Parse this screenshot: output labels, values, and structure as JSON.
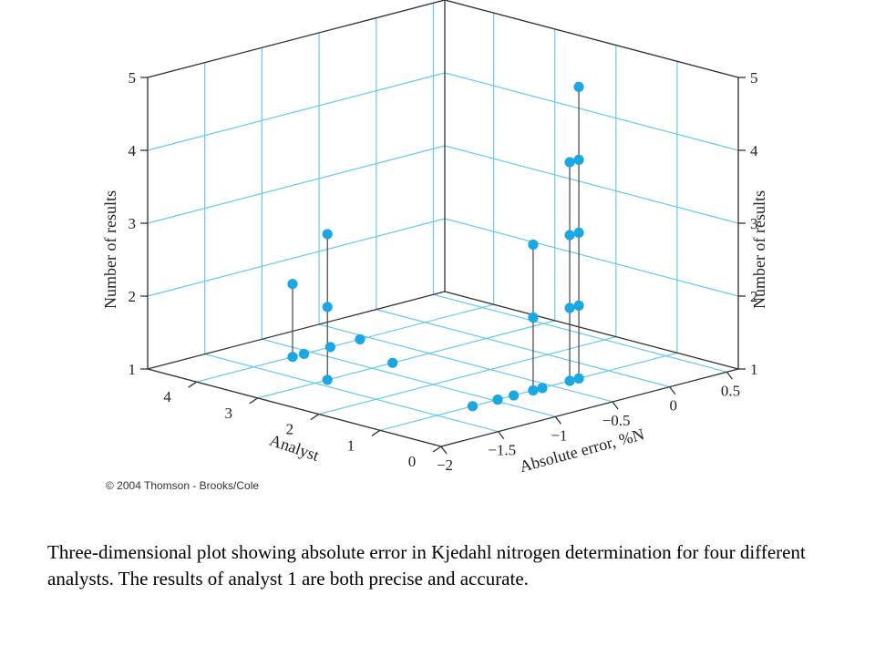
{
  "chart_data": {
    "type": "scatter",
    "z_label": "Number of results",
    "x_label": "Absolute error, %N",
    "y_label": "Analyst",
    "z_ticks": [
      "1",
      "2",
      "3",
      "4",
      "5"
    ],
    "x_ticks": [
      "−2",
      "−1.5",
      "−1",
      "−0.5",
      "0",
      "0.5"
    ],
    "y_ticks": [
      "0",
      "1",
      "2",
      "3",
      "4"
    ],
    "z_range": [
      1,
      5
    ],
    "x_range": [
      -2,
      0.6
    ],
    "y_range": [
      0,
      4.8
    ],
    "point_color": "#19a7e6",
    "grid_color": "#66c8ee",
    "series": [
      {
        "analyst": 1,
        "points": [
          [
            -1.19,
            1
          ],
          [
            -0.97,
            1
          ],
          [
            -0.83,
            1
          ],
          [
            -0.66,
            1
          ],
          [
            -0.58,
            1
          ],
          [
            -0.66,
            2
          ],
          [
            -0.66,
            3
          ],
          [
            -0.34,
            1
          ],
          [
            -0.34,
            2
          ],
          [
            -0.34,
            3
          ],
          [
            -0.34,
            4
          ],
          [
            -0.26,
            1
          ],
          [
            -0.26,
            2
          ],
          [
            -0.26,
            3
          ],
          [
            -0.26,
            4
          ],
          [
            -0.26,
            5
          ]
        ]
      },
      {
        "analyst": 2,
        "points": []
      },
      {
        "analyst": 3,
        "points": [
          [
            -1.39,
            1
          ],
          [
            -1.39,
            2
          ],
          [
            -1.39,
            3
          ],
          [
            -0.82,
            1
          ]
        ]
      },
      {
        "analyst": 4,
        "points": [
          [
            -1.16,
            1
          ],
          [
            -1.16,
            2
          ],
          [
            -1.06,
            1
          ],
          [
            -0.83,
            1
          ],
          [
            -0.57,
            1
          ]
        ]
      }
    ]
  },
  "copyright": "© 2004 Thomson - Brooks/Cole",
  "caption": "Three-dimensional plot showing absolute error in Kjedahl nitrogen determination for four different analysts. The results of analyst 1 are both precise and accurate."
}
